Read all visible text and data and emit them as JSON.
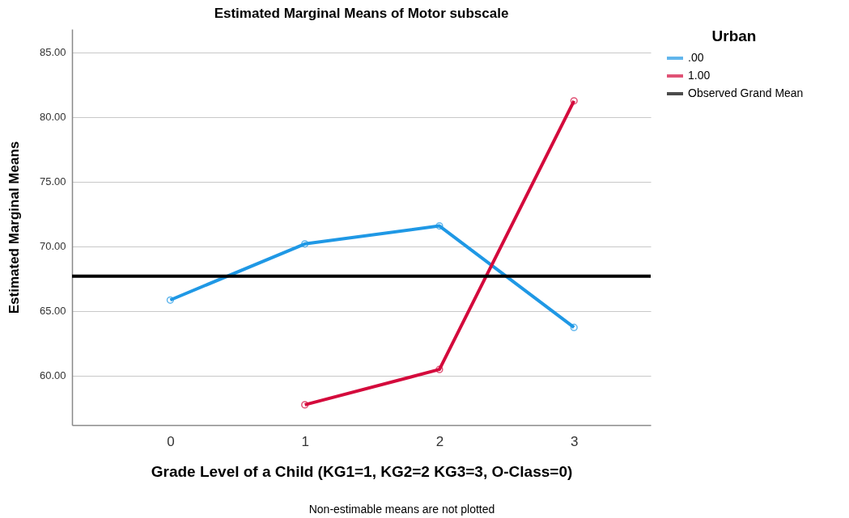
{
  "chart_data": {
    "type": "line",
    "title": "Estimated Marginal Means of Motor subscale",
    "xlabel": "Grade Level of a Child (KG1=1, KG2=2 KG3=3, O-Class=0)",
    "ylabel": "Estimated Marginal Means",
    "legend_title": "Urban",
    "categories": [
      "0",
      "1",
      "2",
      "3"
    ],
    "series": [
      {
        "name": ".00",
        "color": "#1f98e5",
        "values": [
          65.85,
          70.19,
          71.58,
          63.73
        ]
      },
      {
        "name": "1.00",
        "color": "#d40a3c",
        "values": [
          null,
          57.75,
          60.48,
          81.25
        ]
      }
    ],
    "ref_lines": [
      {
        "axis": "y",
        "value": 67.69,
        "label": "Observed Grand Mean",
        "color": "#000000"
      }
    ],
    "ylim": [
      56.18,
      86.8
    ],
    "yticks": [
      {
        "value": 60,
        "label": "60.00"
      },
      {
        "value": 65,
        "label": "65.00"
      },
      {
        "value": 70,
        "label": "70.00"
      },
      {
        "value": 75,
        "label": "75.00"
      },
      {
        "value": 80,
        "label": "80.00"
      },
      {
        "value": 85,
        "label": "85.00"
      }
    ],
    "grid": "y",
    "legend": "top right",
    "marker": "circle",
    "line_style": "solid",
    "annotations": [
      "Non-estimable means are not plotted"
    ]
  }
}
